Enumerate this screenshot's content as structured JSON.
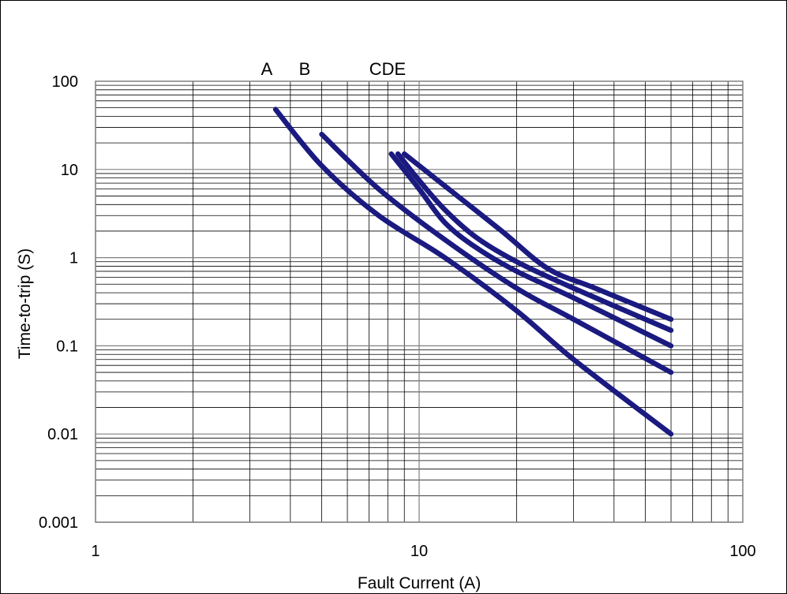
{
  "chart_data": {
    "type": "line",
    "title": "",
    "xlabel": "Fault Current (A)",
    "ylabel": "Time-to-trip (S)",
    "x_scale": "log",
    "y_scale": "log",
    "xlim": [
      1,
      100
    ],
    "ylim": [
      0.001,
      100
    ],
    "x_ticks": [
      1,
      10,
      100
    ],
    "x_tick_labels": [
      "1",
      "10",
      "100"
    ],
    "y_ticks": [
      0.001,
      0.01,
      0.1,
      1,
      10,
      100
    ],
    "y_tick_labels": [
      "0.001",
      "0.01",
      "0.1",
      "1",
      "10",
      "100"
    ],
    "grid": true,
    "line_color": "#1a1a80",
    "curve_labels": [
      "A",
      "B",
      "CDE"
    ],
    "series": [
      {
        "x": [
          3.6,
          5,
          7.5,
          12,
          20,
          30,
          60
        ],
        "y": [
          48,
          11,
          3,
          1,
          0.25,
          0.07,
          0.01
        ]
      },
      {
        "x": [
          5,
          7.5,
          12,
          20,
          30,
          60
        ],
        "y": [
          25,
          6,
          1.6,
          0.45,
          0.2,
          0.05
        ]
      },
      {
        "x": [
          8.2,
          10,
          12,
          15,
          20,
          30,
          60
        ],
        "y": [
          15,
          6,
          2.5,
          1.3,
          0.7,
          0.35,
          0.1
        ]
      },
      {
        "x": [
          8.6,
          10,
          12,
          15,
          20,
          30,
          60
        ],
        "y": [
          15,
          7.5,
          3.5,
          1.7,
          0.9,
          0.45,
          0.15
        ]
      },
      {
        "x": [
          9,
          12,
          18,
          25,
          35,
          60
        ],
        "y": [
          15,
          6.5,
          2,
          0.75,
          0.45,
          0.2
        ]
      }
    ]
  }
}
